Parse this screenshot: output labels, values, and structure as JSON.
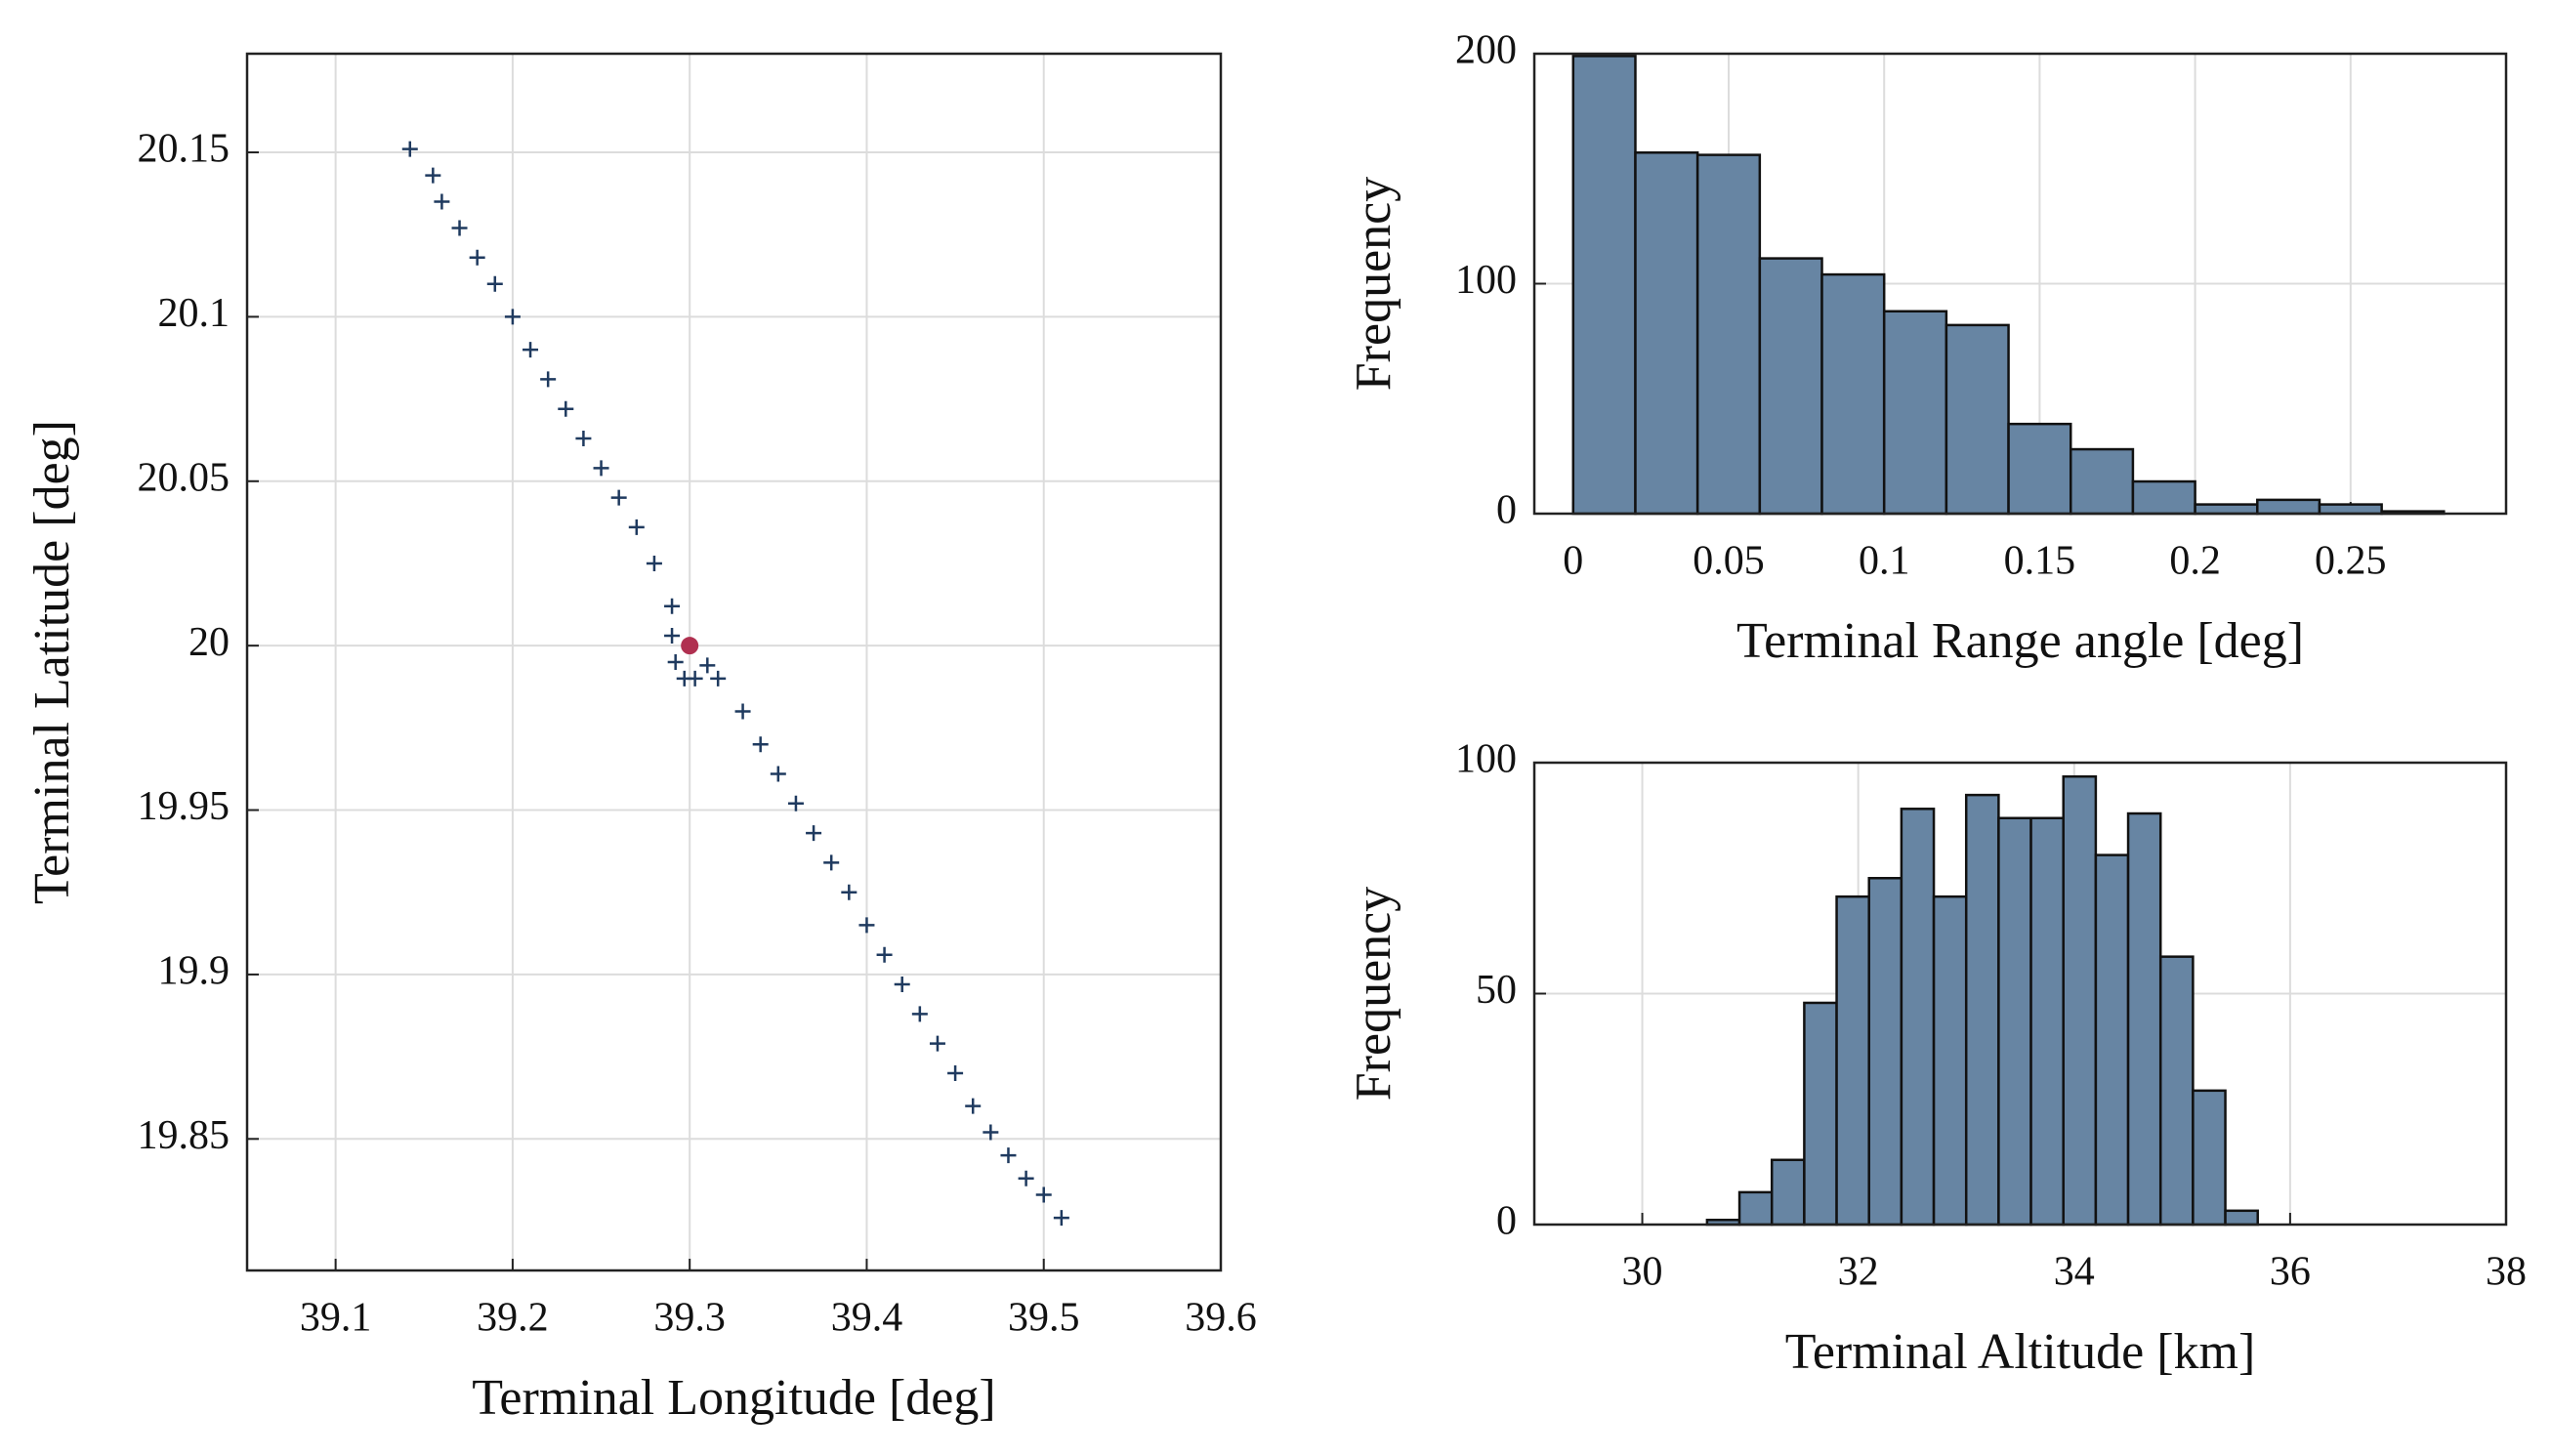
{
  "chart_data": [
    {
      "type": "scatter",
      "xlabel": "Terminal Longitude [deg]",
      "ylabel": "Terminal Latitude [deg]",
      "xlim": [
        39.05,
        39.6
      ],
      "xticks": [
        39.1,
        39.2,
        39.3,
        39.4,
        39.5,
        39.6
      ],
      "ylim": [
        19.81,
        20.18
      ],
      "yticks": [
        19.85,
        19.9,
        19.95,
        20,
        20.05,
        20.1,
        20.15
      ],
      "grid": true,
      "series": [
        {
          "color": "#1f3a5f",
          "marker": "plus",
          "x": [
            39.142,
            39.155,
            39.16,
            39.17,
            39.18,
            39.19,
            39.2,
            39.21,
            39.22,
            39.23,
            39.24,
            39.25,
            39.26,
            39.27,
            39.28,
            39.29,
            39.29,
            39.292,
            39.297,
            39.303,
            39.31,
            39.316,
            39.33,
            39.34,
            39.35,
            39.36,
            39.37,
            39.38,
            39.39,
            39.4,
            39.41,
            39.42,
            39.43,
            39.44,
            39.45,
            39.46,
            39.47,
            39.48,
            39.49,
            39.5,
            39.51
          ],
          "values": [
            20.151,
            20.143,
            20.135,
            20.127,
            20.118,
            20.11,
            20.1,
            20.09,
            20.081,
            20.072,
            20.063,
            20.054,
            20.045,
            20.036,
            20.025,
            20.012,
            20.003,
            19.995,
            19.99,
            19.99,
            19.994,
            19.99,
            19.98,
            19.97,
            19.961,
            19.952,
            19.943,
            19.934,
            19.925,
            19.915,
            19.906,
            19.897,
            19.888,
            19.879,
            19.87,
            19.86,
            19.852,
            19.845,
            19.838,
            19.833,
            19.826
          ]
        },
        {
          "color": "#b03050",
          "marker": "dot",
          "x": [
            39.3
          ],
          "values": [
            20
          ]
        }
      ]
    },
    {
      "type": "histogram",
      "xlabel": "Terminal Range angle [deg]",
      "ylabel": "Frequency",
      "color": "#6785a3",
      "bins": [
        0,
        0.02,
        0.04,
        0.06,
        0.08,
        0.1,
        0.12,
        0.14,
        0.16,
        0.18,
        0.2,
        0.22,
        0.24,
        0.26,
        0.28
      ],
      "values": [
        199,
        157,
        156,
        111,
        104,
        88,
        82,
        39,
        28,
        14,
        4,
        6,
        4,
        1
      ],
      "xlim": [
        -0.0125,
        0.3
      ],
      "xticks": [
        0,
        0.05,
        0.1,
        0.15,
        0.2,
        0.25
      ],
      "ylim": [
        0,
        200
      ],
      "yticks": [
        0,
        100,
        200
      ],
      "grid": true
    },
    {
      "type": "histogram",
      "xlabel": "Terminal Altitude [km]",
      "ylabel": "Frequency",
      "color": "#6785a3",
      "bins": [
        30.6,
        30.9,
        31.2,
        31.5,
        31.8,
        32.1,
        32.4,
        32.7,
        33,
        33.3,
        33.6,
        33.9,
        34.2,
        34.5,
        34.8,
        35.1,
        35.4,
        35.7
      ],
      "values": [
        1,
        7,
        14,
        48,
        71,
        75,
        90,
        71,
        93,
        88,
        88,
        97,
        80,
        89,
        58,
        29,
        3
      ],
      "xlim": [
        29,
        38
      ],
      "xticks": [
        30,
        32,
        34,
        36,
        38
      ],
      "ylim": [
        0,
        100
      ],
      "yticks": [
        0,
        50,
        100
      ],
      "grid": true
    }
  ]
}
